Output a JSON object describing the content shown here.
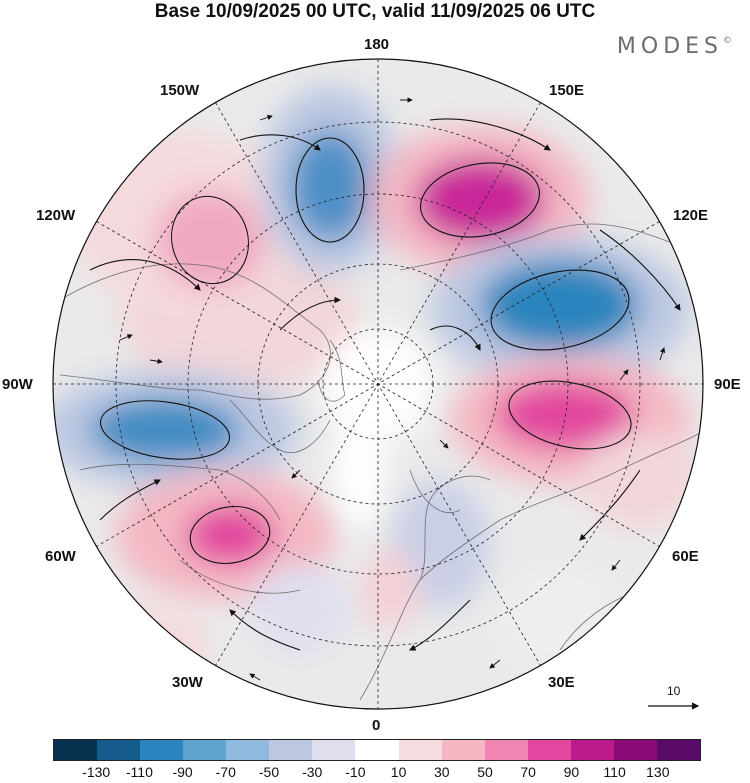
{
  "title": "Base 10/09/2025 00 UTC, valid 11/09/2025 06 UTC",
  "brand": {
    "name": "MODES",
    "mark": "©"
  },
  "longitude_labels": {
    "top": "180",
    "bottom": "0",
    "left": "90W",
    "right": "90E",
    "ul1": "150W",
    "ul2": "120W",
    "ur1": "150E",
    "ur2": "120E",
    "ll1": "60W",
    "ll2": "30W",
    "lr1": "60E",
    "lr2": "30E"
  },
  "colorbar": {
    "colors": [
      "#08304f",
      "#155b8c",
      "#2c85be",
      "#5fa3cf",
      "#8fb9de",
      "#bcc8e2",
      "#dfdff0",
      "#ffffff",
      "#f7dde0",
      "#f4b7c3",
      "#ef85b0",
      "#e2479f",
      "#bd1b8c",
      "#8a0a78",
      "#5a0a68"
    ],
    "tick_labels": [
      "-130",
      "-110",
      "-90",
      "-70",
      "-50",
      "-30",
      "-10",
      "10",
      "30",
      "50",
      "70",
      "90",
      "110",
      "130"
    ]
  },
  "reference_vector": {
    "label": "10"
  }
}
